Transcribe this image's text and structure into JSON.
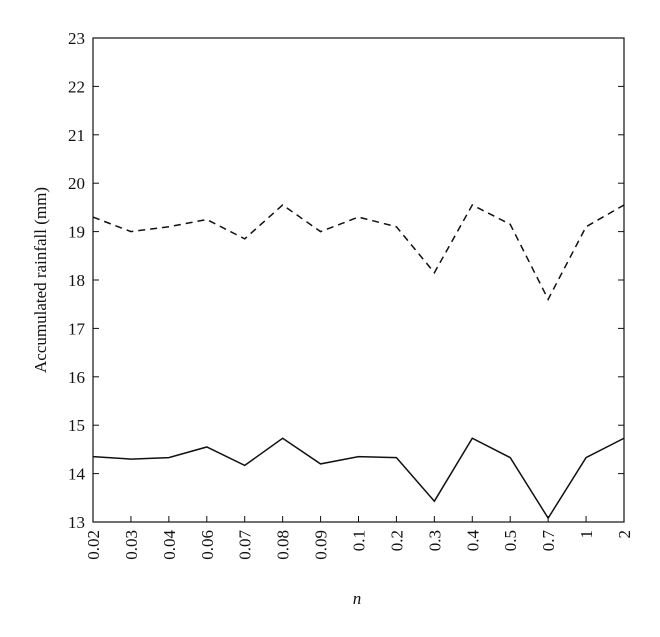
{
  "chart_data": {
    "type": "line",
    "x_label": "n",
    "y_label": "Accumulated rainfall (mm)",
    "categories": [
      "0.02",
      "0.03",
      "0.04",
      "0.06",
      "0.07",
      "0.08",
      "0.09",
      "0.1",
      "0.2",
      "0.3",
      "0.4",
      "0.5",
      "0.7",
      "1",
      "2"
    ],
    "series": [
      {
        "color": "#111111",
        "style": "dashed",
        "values": [
          19.3,
          19.0,
          19.1,
          19.25,
          18.85,
          19.55,
          19.0,
          19.3,
          19.1,
          18.15,
          19.55,
          19.15,
          17.6,
          19.1,
          19.55
        ]
      },
      {
        "color": "#111111",
        "style": "solid",
        "values": [
          14.35,
          14.3,
          14.33,
          14.55,
          14.17,
          14.73,
          14.2,
          14.35,
          14.33,
          13.43,
          14.73,
          14.33,
          13.08,
          14.33,
          14.73
        ]
      }
    ],
    "ylim": [
      13,
      23
    ],
    "yticks": [
      13,
      14,
      15,
      16,
      17,
      18,
      19,
      20,
      21,
      22,
      23
    ],
    "grid": false
  }
}
